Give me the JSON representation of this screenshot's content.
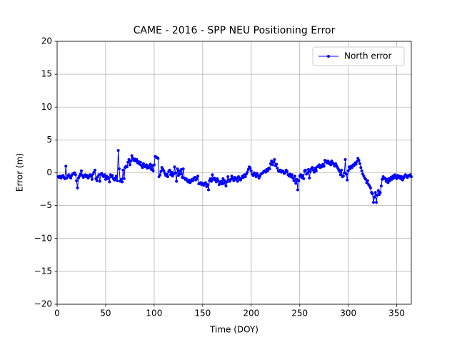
{
  "chart_data": {
    "type": "line",
    "title": "CAME - 2016 - SPP NEU Positioning Error",
    "xlabel": "Time (DOY)",
    "ylabel": "Error (m)",
    "xlim": [
      0,
      365
    ],
    "ylim": [
      -20,
      20
    ],
    "xticks": [
      0,
      50,
      100,
      150,
      200,
      250,
      300,
      350
    ],
    "yticks": [
      {
        "value": -20,
        "label": "−20"
      },
      {
        "value": -15,
        "label": "−15"
      },
      {
        "value": -10,
        "label": "−10"
      },
      {
        "value": -5,
        "label": "−5"
      },
      0,
      5,
      10,
      15,
      20
    ],
    "grid": true,
    "legend": "upper right",
    "x": [
      1,
      2,
      3,
      4,
      5,
      6,
      7,
      8,
      9,
      10,
      11,
      12,
      13,
      14,
      15,
      16,
      17,
      18,
      19,
      20,
      21,
      22,
      23,
      24,
      25,
      26,
      27,
      28,
      29,
      30,
      31,
      32,
      33,
      34,
      35,
      36,
      37,
      38,
      39,
      40,
      41,
      42,
      43,
      44,
      45,
      46,
      47,
      48,
      49,
      50,
      51,
      52,
      53,
      54,
      55,
      56,
      57,
      58,
      59,
      60,
      61,
      62,
      63,
      64,
      65,
      66,
      67,
      68,
      69,
      70,
      71,
      72,
      73,
      74,
      75,
      76,
      77,
      78,
      79,
      80,
      81,
      82,
      83,
      84,
      85,
      86,
      87,
      88,
      89,
      90,
      91,
      92,
      93,
      94,
      95,
      96,
      97,
      98,
      99,
      100,
      101,
      102,
      103,
      104,
      105,
      106,
      107,
      108,
      109,
      110,
      111,
      112,
      113,
      114,
      115,
      116,
      117,
      118,
      119,
      120,
      121,
      122,
      123,
      124,
      125,
      126,
      127,
      128,
      129,
      130,
      131,
      132,
      133,
      134,
      135,
      136,
      137,
      138,
      139,
      140,
      141,
      142,
      143,
      144,
      145,
      146,
      147,
      148,
      149,
      150,
      151,
      152,
      153,
      154,
      155,
      156,
      157,
      158,
      159,
      160,
      161,
      162,
      163,
      164,
      165,
      166,
      167,
      168,
      169,
      170,
      171,
      172,
      173,
      174,
      175,
      176,
      177,
      178,
      179,
      180,
      181,
      182,
      183,
      184,
      185,
      186,
      187,
      188,
      189,
      190,
      191,
      192,
      193,
      194,
      195,
      196,
      197,
      198,
      199,
      200,
      201,
      202,
      203,
      204,
      205,
      206,
      207,
      208,
      209,
      210,
      211,
      212,
      213,
      214,
      215,
      216,
      217,
      218,
      219,
      220,
      221,
      222,
      223,
      224,
      225,
      226,
      227,
      228,
      229,
      230,
      231,
      232,
      233,
      234,
      235,
      236,
      237,
      238,
      239,
      240,
      241,
      242,
      243,
      244,
      245,
      246,
      247,
      248,
      249,
      250,
      251,
      252,
      253,
      254,
      255,
      256,
      257,
      258,
      259,
      260,
      261,
      262,
      263,
      264,
      265,
      266,
      267,
      268,
      269,
      270,
      271,
      272,
      273,
      274,
      275,
      276,
      277,
      278,
      279,
      280,
      281,
      282,
      283,
      284,
      285,
      286,
      287,
      288,
      289,
      290,
      291,
      292,
      293,
      294,
      295,
      296,
      297,
      298,
      299,
      300,
      301,
      302,
      303,
      304,
      305,
      306,
      307,
      308,
      309,
      310,
      311,
      312,
      313,
      314,
      315,
      316,
      317,
      318,
      319,
      320,
      321,
      322,
      323,
      324,
      325,
      326,
      327,
      328,
      329,
      330,
      331,
      332,
      333,
      334,
      335,
      336,
      337,
      338,
      339,
      340,
      341,
      342,
      343,
      344,
      345,
      346,
      347,
      348,
      349,
      350,
      351,
      352,
      353,
      354,
      355,
      356,
      357,
      358,
      359,
      360,
      361,
      362,
      363,
      364,
      365
    ],
    "series": [
      {
        "name": "North error",
        "color": "#0000ff",
        "values": [
          -0.6,
          -0.7,
          -0.5,
          -0.8,
          -0.6,
          -0.4,
          -0.7,
          -0.9,
          1.0,
          -0.8,
          -0.5,
          -0.3,
          -0.6,
          -0.8,
          -0.4,
          -0.2,
          -0.1,
          0.0,
          -0.3,
          -1.2,
          -2.3,
          -0.8,
          -0.5,
          -0.2,
          0.3,
          -0.4,
          -0.7,
          -0.5,
          -0.3,
          -0.6,
          -0.4,
          -0.8,
          -0.6,
          -0.3,
          -0.5,
          -1.0,
          -0.2,
          0.1,
          0.4,
          -0.9,
          -1.2,
          -0.6,
          -0.3,
          -1.3,
          -0.2,
          -0.1,
          -0.4,
          -0.6,
          -0.3,
          -1.0,
          -0.5,
          -0.9,
          -0.7,
          -1.4,
          -0.3,
          -0.6,
          -0.4,
          -0.9,
          -1.1,
          -0.8,
          -0.5,
          -1.2,
          3.4,
          0.6,
          -1.3,
          -1.0,
          -1.4,
          0.4,
          -0.9,
          0.8,
          1.0,
          0.9,
          1.6,
          2.0,
          1.2,
          1.8,
          2.6,
          2.2,
          1.9,
          2.1,
          1.8,
          2.0,
          1.5,
          1.7,
          1.3,
          1.6,
          1.1,
          0.8,
          1.4,
          1.0,
          0.9,
          1.2,
          0.7,
          1.0,
          0.8,
          1.3,
          0.5,
          1.1,
          0.3,
          1.2,
          2.5,
          2.4,
          2.3,
          2.2,
          -0.6,
          -0.3,
          0.2,
          0.8,
          0.5,
          0.3,
          -0.1,
          -0.4,
          -0.2,
          -0.6,
          0.2,
          0.4,
          -0.3,
          0.1,
          -0.5,
          -0.2,
          0.9,
          0.0,
          -1.3,
          0.6,
          -0.4,
          0.3,
          -0.2,
          0.5,
          -0.7,
          0.6,
          -0.8,
          -1.0,
          -0.9,
          -1.2,
          -1.4,
          -1.1,
          -1.5,
          -1.3,
          -1.0,
          -1.2,
          -0.8,
          -0.7,
          -1.1,
          -0.9,
          -0.5,
          -1.7,
          -1.6,
          -1.5,
          -1.8,
          -1.6,
          -1.9,
          -1.7,
          -1.5,
          -2.1,
          -1.8,
          -2.6,
          -1.2,
          -0.9,
          -1.3,
          -0.3,
          -1.0,
          -0.8,
          -1.1,
          -1.4,
          -0.9,
          -1.2,
          -1.8,
          -1.5,
          -1.3,
          -1.7,
          -0.9,
          -1.6,
          -1.2,
          -2.0,
          -1.4,
          -0.6,
          -1.1,
          -1.3,
          -1.0,
          -0.5,
          -0.9,
          -1.2,
          -0.7,
          -1.0,
          -0.8,
          -1.3,
          -0.6,
          -0.9,
          -1.1,
          -0.8,
          -0.5,
          -0.7,
          -0.3,
          -0.6,
          -0.2,
          0.1,
          0.5,
          0.9,
          0.7,
          0.3,
          -0.2,
          -0.4,
          0.0,
          -0.3,
          -0.6,
          -0.1,
          -0.4,
          -0.8,
          -0.5,
          -0.2,
          -0.1,
          0.0,
          0.2,
          0.3,
          0.1,
          0.5,
          0.3,
          0.7,
          0.6,
          1.4,
          1.8,
          1.2,
          1.6,
          2.0,
          1.1,
          1.3,
          0.7,
          0.3,
          0.2,
          0.4,
          0.1,
          0.3,
          0.2,
          -0.1,
          0.0,
          0.4,
          0.2,
          -0.3,
          -0.5,
          -0.2,
          -0.6,
          -0.3,
          -0.8,
          -1.2,
          -0.5,
          -1.6,
          -1.0,
          -2.6,
          -1.2,
          -0.5,
          -0.3,
          -0.7,
          -0.4,
          -0.9,
          0.3,
          0.4,
          -0.2,
          0.0,
          0.5,
          -0.8,
          0.2,
          0.6,
          0.8,
          0.4,
          0.1,
          0.7,
          0.3,
          0.9,
          1.0,
          1.2,
          0.8,
          1.1,
          0.9,
          1.3,
          1.0,
          1.9,
          1.7,
          1.5,
          1.8,
          1.4,
          1.6,
          1.2,
          1.8,
          1.5,
          1.3,
          1.0,
          1.4,
          1.1,
          0.8,
          0.5,
          0.2,
          -0.3,
          0.4,
          -0.6,
          -0.5,
          0.0,
          2.0,
          -0.2,
          -1.1,
          0.3,
          0.9,
          0.6,
          1.0,
          0.8,
          1.2,
          1.1,
          1.5,
          1.3,
          1.7,
          2.2,
          1.9,
          1.4,
          0.8,
          0.3,
          -0.2,
          -0.5,
          -0.8,
          -1.0,
          -1.5,
          -1.2,
          -1.8,
          -2.0,
          -2.3,
          -3.0,
          -3.2,
          -4.5,
          -3.7,
          -3.0,
          -4.5,
          -3.4,
          -2.7,
          -3.3,
          -3.0,
          -2.0,
          -1.0,
          -0.6,
          -0.9,
          -0.8,
          -1.3,
          -1.0,
          -1.5,
          -0.9,
          -1.2,
          -0.7,
          -1.0,
          -0.5,
          -0.8,
          -0.3,
          -0.6,
          -0.9,
          -0.4,
          -0.7,
          -0.5,
          -0.9,
          -0.6,
          -1.1,
          -0.8,
          -0.5,
          -0.3,
          -0.6,
          -0.7,
          -0.4,
          -0.5,
          -0.3,
          -0.6
        ]
      }
    ]
  }
}
